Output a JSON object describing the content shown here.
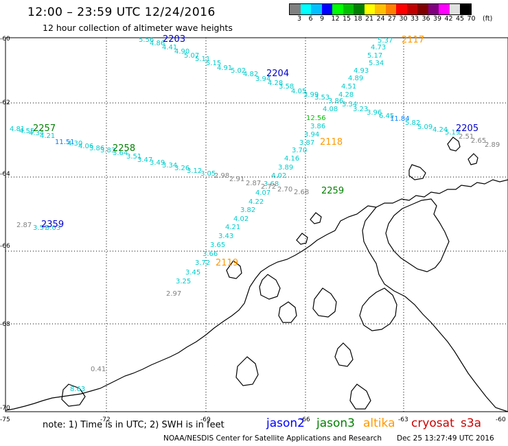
{
  "header": {
    "title": "12:00 – 23:59 UTC 12/24/2016",
    "subtitle": "12 hour collection of altimeter wave heights"
  },
  "legend": {
    "colors": [
      "#808080",
      "#00ffff",
      "#00c0ff",
      "#0000ff",
      "#00ff00",
      "#00c000",
      "#008000",
      "#ffff00",
      "#ffc000",
      "#ff8000",
      "#ff0000",
      "#c00000",
      "#800000",
      "#800080",
      "#ff00ff",
      "#e0e0e0",
      "#000000"
    ],
    "labels": [
      "3",
      "6",
      "9",
      "12",
      "15",
      "18",
      "21",
      "24",
      "27",
      "30",
      "33",
      "36",
      "39",
      "42",
      "45",
      "70"
    ],
    "unit": "(ft)"
  },
  "axes": {
    "lat_labels": [
      "-60",
      "-62",
      "-64",
      "-66",
      "-68",
      "-70"
    ],
    "lon_labels": [
      "-75",
      "-72",
      "-69",
      "-66",
      "-63",
      "-60"
    ]
  },
  "footer": {
    "note": "note:  1) Time is in UTC;  2) SWH is in feet",
    "satellites": [
      {
        "name": "jason2",
        "color": "#0000ff"
      },
      {
        "name": "jason3",
        "color": "#008000"
      },
      {
        "name": "altika",
        "color": "#ff9900"
      },
      {
        "name": "cryosat",
        "color": "#cc0000"
      },
      {
        "name": "s3a",
        "color": "#cc0000"
      }
    ],
    "credit": "NOAA/NESDIS Center for Satellite Applications and Research",
    "stamp": "Dec 25 13:27:49 UTC 2016"
  },
  "passes": [
    {
      "time": "2203",
      "color": "#0000cc"
    },
    {
      "time": "2204",
      "color": "#0000cc"
    },
    {
      "time": "2117",
      "color": "#ff9900"
    },
    {
      "time": "2118",
      "color": "#ff9900"
    },
    {
      "time": "2119",
      "color": "#ff9900"
    },
    {
      "time": "2205",
      "color": "#0000cc"
    },
    {
      "time": "2257",
      "color": "#008000"
    },
    {
      "time": "2258",
      "color": "#008000"
    },
    {
      "time": "2259",
      "color": "#008000"
    },
    {
      "time": "2359",
      "color": "#0000cc"
    }
  ],
  "wave_labels": {
    "track_2203_2204": [
      "5.56",
      "4.86",
      "4.41",
      "4.90",
      "5.07",
      "5.11",
      "5.15",
      "4.91",
      "5.02",
      "4.82",
      "3.94",
      "4.28",
      "3.58",
      "4.05",
      "3.99",
      "3.53",
      "3.86",
      "3.34",
      "3.23",
      "3.96",
      "6.45",
      "11.84",
      "5.82",
      "5.09",
      "4.24",
      "5.19",
      "2.51",
      "2.65",
      "2.89"
    ],
    "track_2117_2119": [
      "5.37",
      "4.73",
      "5.17",
      "5.34",
      "4.93",
      "4.89",
      "4.51",
      "4.28",
      "4.08",
      "12.56",
      "3.86",
      "3.94",
      "3.87",
      "3.70",
      "4.16",
      "3.89",
      "4.02",
      "3.68",
      "4.07",
      "4.22",
      "3.82",
      "4.02",
      "4.21",
      "3.43",
      "3.65",
      "3.66",
      "3.72",
      "3.45",
      "3.25",
      "2.97"
    ],
    "track_2257_2259": [
      "4.81",
      "4.55",
      "4.34",
      "4.21",
      "11.51",
      "4.30",
      "4.06",
      "3.86",
      "3.83",
      "3.64",
      "3.51",
      "3.47",
      "3.49",
      "3.34",
      "3.26",
      "3.12",
      "3.05",
      "2.98",
      "2.91",
      "2.87",
      "2.72",
      "2.70",
      "2.68"
    ],
    "isolated": [
      "2.87",
      "3.57",
      "3.03",
      "0.41",
      "8.63"
    ]
  }
}
